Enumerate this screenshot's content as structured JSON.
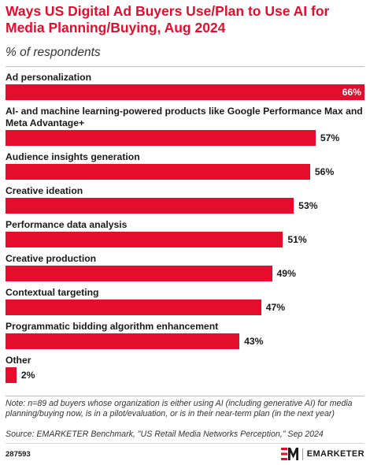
{
  "header": {
    "title": "Ways US Digital Ad Buyers Use/Plan to Use AI for Media Planning/Buying, Aug 2024",
    "subtitle": "% of respondents"
  },
  "chart_data": {
    "type": "bar",
    "orientation": "horizontal",
    "categories": [
      "Ad personalization",
      "AI- and machine learning-powered products like Google Performance Max and Meta Advantage+",
      "Audience insights generation",
      "Creative ideation",
      "Performance data analysis",
      "Creative production",
      "Contextual targeting",
      "Programmatic bidding algorithm enhancement",
      "Other"
    ],
    "values": [
      66,
      57,
      56,
      53,
      51,
      49,
      47,
      43,
      2
    ],
    "value_labels": [
      "66%",
      "57%",
      "56%",
      "53%",
      "51%",
      "49%",
      "47%",
      "43%",
      "2%"
    ],
    "unit": "%",
    "xlim": [
      0,
      66
    ],
    "bar_color": "#e40d2b",
    "grid": false,
    "legend": "none"
  },
  "footer": {
    "note": "Note: n=89 ad buyers whose organization is either using AI (including generative AI) for media planning/buying now, is in a pilot/evaluation, or is in their near-term plan (in the next year)",
    "source": "Source: EMARKETER Benchmark, \"US Retail Media Networks Perception,\" Sep 2024",
    "chart_id": "287593",
    "brand": "EMARKETER"
  },
  "colors": {
    "accent": "#e40d2b",
    "text": "#1a1a1a"
  },
  "icons": {
    "brand_logo": "emarketer-logo-icon"
  }
}
